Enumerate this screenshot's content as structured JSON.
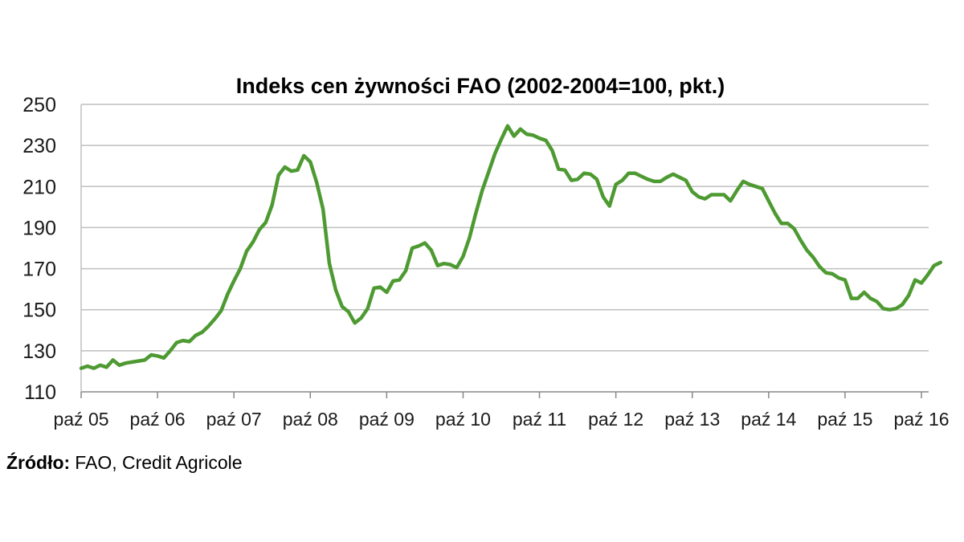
{
  "chart_data": {
    "type": "line",
    "title": "Indeks cen żywności  FAO (2002-2004=100, pkt.)",
    "xlabel": "",
    "ylabel": "",
    "ylim": [
      110,
      250
    ],
    "yticks": [
      110,
      130,
      150,
      170,
      190,
      210,
      230,
      250
    ],
    "grid": true,
    "legend": "none",
    "colors": {
      "series": "#4e9a32",
      "grid": "#bfbfbf",
      "axis": "#888888"
    },
    "x_tick_labels": [
      "paź 05",
      "paź 06",
      "paź 07",
      "paź 08",
      "paź 09",
      "paź 10",
      "paź 11",
      "paź 12",
      "paź 13",
      "paź 14",
      "paź 15",
      "paź 16"
    ],
    "series": [
      {
        "values": [
          121.5,
          122.5,
          121.5,
          123.0,
          122.0,
          125.5,
          123.0,
          124.0,
          124.5,
          125.0,
          125.5,
          128.0,
          127.5,
          126.5,
          130.0,
          134.0,
          135.0,
          134.5,
          137.5,
          139.0,
          142.0,
          145.5,
          149.5,
          157.5,
          164.0,
          170.0,
          178.5,
          183.0,
          189.0,
          192.5,
          201.0,
          215.5,
          219.5,
          217.5,
          218.0,
          225.0,
          222.0,
          212.0,
          199.0,
          172.5,
          159.5,
          151.5,
          149.0,
          143.5,
          146.0,
          150.5,
          160.5,
          161.0,
          158.5,
          164.0,
          164.5,
          169.0,
          180.0,
          181.0,
          182.5,
          179.0,
          171.5,
          172.5,
          172.0,
          170.5,
          176.0,
          185.0,
          197.0,
          208.0,
          217.0,
          226.0,
          233.0,
          239.5,
          234.5,
          238.0,
          235.5,
          235.0,
          233.5,
          232.5,
          227.5,
          218.5,
          218.0,
          213.0,
          213.5,
          216.5,
          216.0,
          213.5,
          205.0,
          200.5,
          211.0,
          213.0,
          216.5,
          216.5,
          215.0,
          213.5,
          212.5,
          212.5,
          214.5,
          216.0,
          214.5,
          213.0,
          207.5,
          205.0,
          204.0,
          206.0,
          206.0,
          206.0,
          203.0,
          208.0,
          212.5,
          211.0,
          210.0,
          209.0,
          203.0,
          197.0,
          192.0,
          192.0,
          189.5,
          184.0,
          179.0,
          175.5,
          171.0,
          168.0,
          167.5,
          165.5,
          164.5,
          155.5,
          155.5,
          158.5,
          155.5,
          154.0,
          150.5,
          150.0,
          150.5,
          152.5,
          157.0,
          164.5,
          163.0,
          167.0,
          171.5,
          173.0
        ]
      }
    ]
  },
  "source": {
    "label": "Źródło:",
    "text": "FAO, Credit Agricole"
  }
}
